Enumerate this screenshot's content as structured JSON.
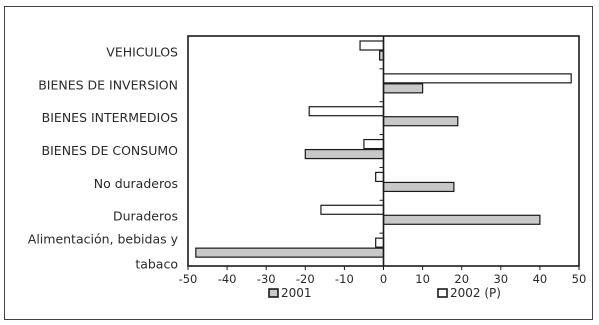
{
  "chart_data": {
    "type": "bar",
    "orientation": "horizontal",
    "categories": [
      "VEHICULOS",
      "BIENES DE INVERSION",
      "BIENES INTERMEDIOS",
      "BIENES DE CONSUMO",
      "No duraderos",
      "Duraderos",
      [
        "Alimentación, bebidas y",
        "tabaco"
      ]
    ],
    "series": [
      {
        "name": "2001",
        "fill": "#c8c8c8",
        "values": [
          -1,
          10,
          19,
          -20,
          18,
          40,
          -48
        ]
      },
      {
        "name": "2002 (P)",
        "fill": "#ffffff",
        "values": [
          -6,
          48,
          -19,
          -5,
          -2,
          -16,
          -2
        ]
      }
    ],
    "xlim": [
      -50,
      50
    ],
    "xticks": [
      -50,
      -40,
      -30,
      -20,
      -10,
      0,
      10,
      20,
      30,
      40,
      50
    ],
    "legend_position": "bottom",
    "grid": false
  }
}
